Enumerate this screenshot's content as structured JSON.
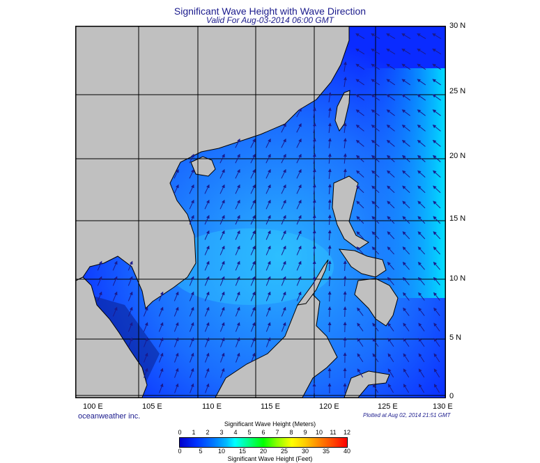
{
  "title": "Significant Wave Height with Wave Direction",
  "subtitle": "Valid For Aug-03-2014 06:00 GMT",
  "latitude_labels": [
    "30 N",
    "25 N",
    "20 N",
    "15 N",
    "10 N",
    "5 N",
    "0"
  ],
  "longitude_labels": [
    "100 E",
    "105 E",
    "110 E",
    "115 E",
    "120 E",
    "125 E",
    "130 E"
  ],
  "credit": "oceanweather inc.",
  "plotted": "Plotted at Aug 02, 2014 21:51 GMT",
  "scale": {
    "meters_title": "Significant Wave Height (Meters)",
    "meters_ticks": [
      "0",
      "1",
      "2",
      "3",
      "4",
      "5",
      "6",
      "7",
      "8",
      "9",
      "10",
      "11",
      "12"
    ],
    "feet_ticks": [
      "0",
      "5",
      "10",
      "15",
      "20",
      "25",
      "30",
      "35",
      "40"
    ],
    "feet_title": "Significant Wave Height (Feet)"
  },
  "colors": {
    "land": "#c0c0c0",
    "ocean_deep": "#0a2bff",
    "ocean_mid": "#1a7dff",
    "ocean_light": "#27c8ff",
    "ocean_cyan": "#00f0ff",
    "arrow": "#1a1a8c",
    "grid": "#000000"
  }
}
